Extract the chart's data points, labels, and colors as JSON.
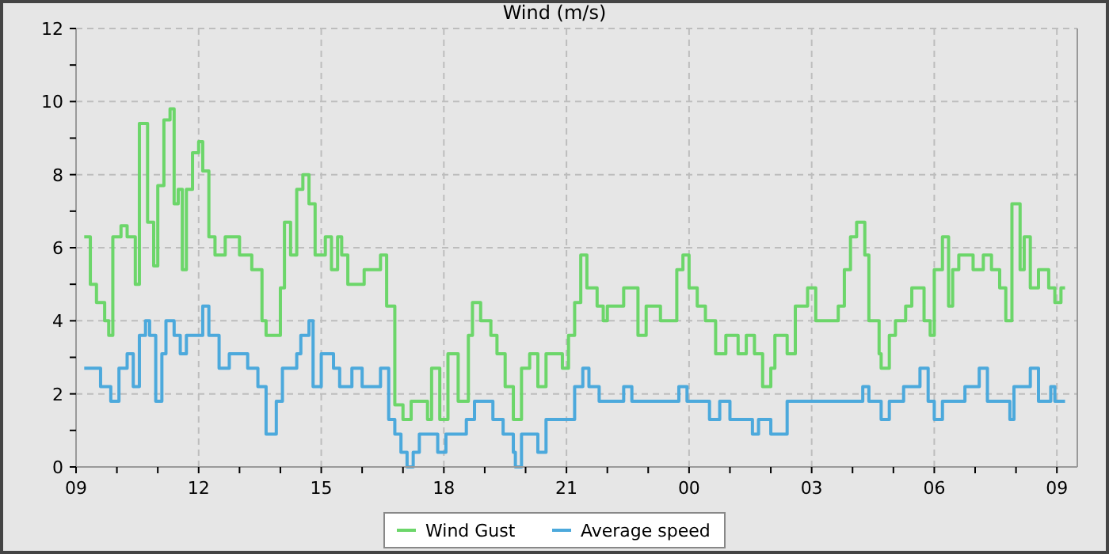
{
  "chart_data": {
    "type": "step",
    "title": "Wind (m/s)",
    "xlim": [
      9,
      33.5
    ],
    "ylim": [
      0,
      12
    ],
    "xticks": [
      {
        "value": 9,
        "label": "09"
      },
      {
        "value": 10,
        "label": null
      },
      {
        "value": 11,
        "label": null
      },
      {
        "value": 12,
        "label": "12"
      },
      {
        "value": 13,
        "label": null
      },
      {
        "value": 14,
        "label": null
      },
      {
        "value": 15,
        "label": "15"
      },
      {
        "value": 16,
        "label": null
      },
      {
        "value": 17,
        "label": null
      },
      {
        "value": 18,
        "label": "18"
      },
      {
        "value": 19,
        "label": null
      },
      {
        "value": 20,
        "label": null
      },
      {
        "value": 21,
        "label": "21"
      },
      {
        "value": 22,
        "label": null
      },
      {
        "value": 23,
        "label": null
      },
      {
        "value": 24,
        "label": "00"
      },
      {
        "value": 25,
        "label": null
      },
      {
        "value": 26,
        "label": null
      },
      {
        "value": 27,
        "label": "03"
      },
      {
        "value": 28,
        "label": null
      },
      {
        "value": 29,
        "label": null
      },
      {
        "value": 30,
        "label": "06"
      },
      {
        "value": 31,
        "label": null
      },
      {
        "value": 32,
        "label": null
      },
      {
        "value": 33,
        "label": "09"
      }
    ],
    "yticks": [
      0,
      {
        "value": 1,
        "label": null
      },
      2,
      {
        "value": 3,
        "label": null
      },
      4,
      {
        "value": 5,
        "label": null
      },
      6,
      {
        "value": 7,
        "label": null
      },
      8,
      {
        "value": 9,
        "label": null
      },
      10,
      {
        "value": 11,
        "label": null
      },
      12
    ],
    "grid": true,
    "legend": "bottom",
    "marker": "none",
    "line_style": "solid",
    "series": [
      {
        "name": "Wind Gust",
        "color": "#6cd66a",
        "x": [
          9.2,
          9.35,
          9.5,
          9.7,
          9.8,
          9.9,
          10.1,
          10.25,
          10.45,
          10.55,
          10.75,
          10.9,
          11.0,
          11.15,
          11.3,
          11.4,
          11.5,
          11.6,
          11.7,
          11.85,
          12.0,
          12.1,
          12.25,
          12.4,
          12.65,
          13.0,
          13.3,
          13.55,
          13.65,
          14.0,
          14.1,
          14.25,
          14.4,
          14.55,
          14.7,
          14.85,
          15.1,
          15.25,
          15.4,
          15.5,
          15.65,
          16.05,
          16.45,
          16.6,
          16.8,
          17.0,
          17.2,
          17.6,
          17.7,
          17.9,
          18.1,
          18.35,
          18.6,
          18.7,
          18.9,
          19.15,
          19.3,
          19.5,
          19.7,
          19.9,
          20.1,
          20.3,
          20.5,
          20.9,
          21.05,
          21.2,
          21.35,
          21.5,
          21.75,
          21.9,
          22.0,
          22.4,
          22.75,
          22.95,
          23.3,
          23.7,
          23.85,
          24.0,
          24.2,
          24.4,
          24.65,
          24.9,
          25.2,
          25.4,
          25.6,
          25.8,
          26.0,
          26.1,
          26.4,
          26.6,
          26.9,
          27.1,
          27.65,
          27.8,
          27.95,
          28.1,
          28.3,
          28.4,
          28.65,
          28.7,
          28.9,
          29.05,
          29.3,
          29.45,
          29.75,
          29.9,
          30.0,
          30.2,
          30.35,
          30.45,
          30.6,
          30.95,
          31.2,
          31.4,
          31.6,
          31.75,
          31.9,
          32.1,
          32.2,
          32.35,
          32.55,
          32.8,
          32.95,
          33.1,
          33.2
        ],
        "values": [
          6.3,
          5,
          4.5,
          4,
          3.6,
          6.3,
          6.6,
          6.3,
          5,
          9.4,
          6.7,
          5.5,
          7.7,
          9.5,
          9.8,
          7.2,
          7.6,
          5.4,
          7.6,
          8.6,
          8.9,
          8.1,
          6.3,
          5.8,
          6.3,
          5.8,
          5.4,
          4,
          3.6,
          4.9,
          6.7,
          5.8,
          7.6,
          8,
          7.2,
          5.8,
          6.3,
          5.4,
          6.3,
          5.8,
          5,
          5.4,
          5.8,
          4.4,
          1.7,
          1.3,
          1.8,
          1.3,
          2.7,
          1.3,
          3.1,
          1.8,
          3.6,
          4.5,
          4,
          3.6,
          3.1,
          2.2,
          1.3,
          2.7,
          3.1,
          2.2,
          3.1,
          2.7,
          3.6,
          4.5,
          5.8,
          4.9,
          4.4,
          4,
          4.4,
          4.9,
          3.6,
          4.4,
          4,
          5.4,
          5.8,
          4.9,
          4.4,
          4,
          3.1,
          3.6,
          3.1,
          3.6,
          3.1,
          2.2,
          2.7,
          3.6,
          3.1,
          4.4,
          4.9,
          4,
          4.4,
          5.4,
          6.3,
          6.7,
          5.8,
          4,
          3.1,
          2.7,
          3.6,
          4,
          4.4,
          4.9,
          4,
          3.6,
          5.4,
          6.3,
          4.4,
          5.4,
          5.8,
          5.4,
          5.8,
          5.4,
          4.9,
          4,
          7.2,
          5.4,
          6.3,
          4.9,
          5.4,
          4.9,
          4.5,
          4.9,
          4.9
        ]
      },
      {
        "name": "Average speed",
        "color": "#4ca9dc",
        "x": [
          9.2,
          9.6,
          9.85,
          10.05,
          10.25,
          10.4,
          10.55,
          10.7,
          10.8,
          10.95,
          11.1,
          11.2,
          11.4,
          11.55,
          11.7,
          11.95,
          12.1,
          12.25,
          12.5,
          12.75,
          13.2,
          13.45,
          13.65,
          13.9,
          14.05,
          14.4,
          14.5,
          14.7,
          14.8,
          15.0,
          15.3,
          15.45,
          15.75,
          16.0,
          16.45,
          16.65,
          16.8,
          16.95,
          17.1,
          17.25,
          17.4,
          17.85,
          18.05,
          18.55,
          18.75,
          19.2,
          19.45,
          19.7,
          19.75,
          19.9,
          20.3,
          20.5,
          21.05,
          21.2,
          21.4,
          21.55,
          21.8,
          22.4,
          22.6,
          23.75,
          23.95,
          24.5,
          24.75,
          25.0,
          25.55,
          25.7,
          26.0,
          26.4,
          28.25,
          28.4,
          28.7,
          28.9,
          29.25,
          29.65,
          29.85,
          30.0,
          30.2,
          30.75,
          31.1,
          31.3,
          31.85,
          31.95,
          32.35,
          32.55,
          32.85,
          32.95,
          33.2
        ],
        "values": [
          2.7,
          2.2,
          1.8,
          2.7,
          3.1,
          2.2,
          3.6,
          4,
          3.6,
          1.8,
          3.1,
          4,
          3.6,
          3.1,
          3.6,
          3.6,
          4.4,
          3.6,
          2.7,
          3.1,
          2.7,
          2.2,
          0.9,
          1.8,
          2.7,
          3.1,
          3.6,
          4,
          2.2,
          3.1,
          2.7,
          2.2,
          2.7,
          2.2,
          2.7,
          1.3,
          0.9,
          0.4,
          0,
          0.4,
          0.9,
          0.4,
          0.9,
          1.3,
          1.8,
          1.3,
          0.9,
          0.4,
          0,
          0.9,
          0.4,
          1.3,
          1.3,
          2.2,
          2.7,
          2.2,
          1.8,
          2.2,
          1.8,
          2.2,
          1.8,
          1.3,
          1.8,
          1.3,
          0.9,
          1.3,
          0.9,
          1.8,
          2.2,
          1.8,
          1.3,
          1.8,
          2.2,
          2.7,
          1.8,
          1.3,
          1.8,
          2.2,
          2.7,
          1.8,
          1.3,
          2.2,
          2.7,
          1.8,
          2.2,
          1.8,
          1.8
        ]
      }
    ]
  }
}
